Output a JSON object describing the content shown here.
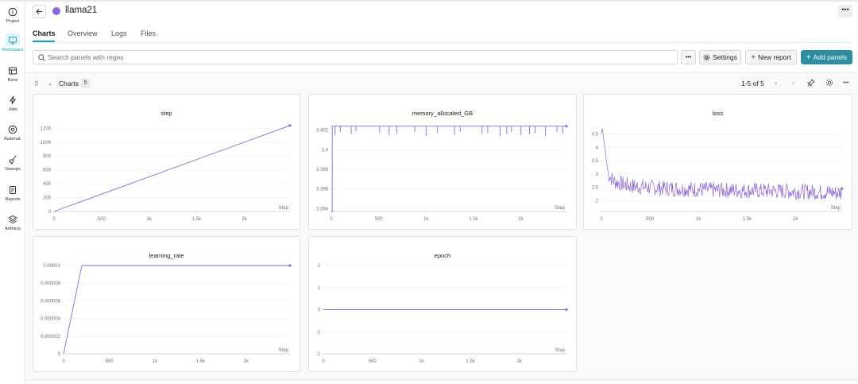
{
  "sidebar": {
    "items": [
      {
        "label": "Project",
        "icon": "info-icon"
      },
      {
        "label": "Workspace",
        "icon": "workspace-icon",
        "active": true
      },
      {
        "label": "Runs",
        "icon": "table-icon"
      },
      {
        "label": "Jobs",
        "icon": "lightning-icon"
      },
      {
        "label": "Automat.",
        "icon": "automation-icon"
      },
      {
        "label": "Sweeps",
        "icon": "broom-icon"
      },
      {
        "label": "Reports",
        "icon": "report-icon"
      },
      {
        "label": "Artifacts",
        "icon": "stack-icon"
      }
    ]
  },
  "header": {
    "run_name": "llama21",
    "run_color": "#8d68d9",
    "more": "•••"
  },
  "tabs": [
    "Charts",
    "Overview",
    "Logs",
    "Files"
  ],
  "toolbar": {
    "search_placeholder": "Search panels with regex",
    "more": "•••",
    "settings": "Settings",
    "new_report": "New report",
    "add_panels": "Add panels"
  },
  "section": {
    "title": "Charts",
    "count": "5",
    "pager": "1-5 of 5"
  },
  "colors": {
    "accent": "#13a3b5",
    "primary_button": "#2e8da3",
    "series": "#8d68d9"
  },
  "step_label": "Step",
  "chart_data": [
    {
      "type": "line",
      "title": "step",
      "xlabel": "Step",
      "xlim": [
        0,
        2480
      ],
      "ylim": [
        0,
        1250
      ],
      "xticks": [
        "0",
        "500",
        "1k",
        "1.5k",
        "2k"
      ],
      "yticks": [
        "0",
        "200",
        "400",
        "600",
        "800",
        "1000",
        "1200"
      ],
      "x": [
        0,
        2480
      ],
      "y": [
        0,
        1240
      ]
    },
    {
      "type": "line",
      "title": "memory_allocated_GB",
      "xlabel": "Step",
      "xlim": [
        0,
        2480
      ],
      "ylim": [
        3.3937,
        3.4027
      ],
      "xticks": [
        "0",
        "500",
        "1k",
        "1.5k",
        "2k"
      ],
      "yticks": [
        "3.394",
        "3.396",
        "3.398",
        "3.4",
        "3.402"
      ],
      "x": [
        0,
        10,
        10,
        2480
      ],
      "y": [
        3.3937,
        3.3937,
        3.4024,
        3.4024
      ],
      "dips_x": [
        40,
        95,
        210,
        260,
        510,
        610,
        690,
        880,
        1000,
        1120,
        1300,
        1360,
        1590,
        1650,
        1780,
        1850,
        1900,
        2000,
        2090,
        2150,
        2260,
        2380,
        2440
      ],
      "dips_y": [
        3.4015,
        3.4018,
        3.4016,
        3.4019,
        3.4017,
        3.4015,
        3.4016,
        3.4018,
        3.4014,
        3.4017,
        3.4015,
        3.4018,
        3.4016,
        3.4017,
        3.4014,
        3.4016,
        3.4018,
        3.4015,
        3.4016,
        3.4017,
        3.4014,
        3.4018,
        3.4016
      ]
    },
    {
      "type": "line",
      "title": "loss",
      "xlabel": "Step",
      "xlim": [
        0,
        2480
      ],
      "ylim": [
        1.6,
        4.9
      ],
      "xticks": [
        "0",
        "500",
        "1k",
        "1.5k",
        "2k"
      ],
      "yticks": [
        "2",
        "2.5",
        "3",
        "3.5",
        "4",
        "4.5"
      ],
      "x": [
        0,
        10,
        20,
        30,
        40,
        50,
        60,
        70,
        80,
        100,
        120,
        150,
        200,
        300,
        500,
        800,
        1200,
        1600,
        2000,
        2480
      ],
      "y": [
        4.5,
        4.75,
        4.4,
        4.1,
        3.9,
        3.5,
        3.25,
        3.05,
        2.95,
        2.85,
        2.75,
        2.7,
        2.65,
        2.55,
        2.5,
        2.45,
        2.4,
        2.38,
        2.35,
        2.3
      ],
      "noise_amplitude": 0.3
    },
    {
      "type": "line",
      "title": "learning_rate",
      "xlabel": "Step",
      "xlim": [
        0,
        2480
      ],
      "ylim": [
        0,
        1e-05
      ],
      "xticks": [
        "0",
        "500",
        "1k",
        "1.5k",
        "2k"
      ],
      "yticks": [
        "0",
        "0.000002",
        "0.000004",
        "0.000006",
        "0.000008",
        "0.00001"
      ],
      "x": [
        0,
        200,
        2480
      ],
      "y": [
        0,
        1e-05,
        1e-05
      ]
    },
    {
      "type": "line",
      "title": "epoch",
      "xlabel": "Step",
      "xlim": [
        0,
        2480
      ],
      "ylim": [
        -2,
        2
      ],
      "xticks": [
        "0",
        "500",
        "1k",
        "1.5k",
        "2k"
      ],
      "yticks": [
        "-2",
        "-1",
        "0",
        "1",
        "2"
      ],
      "x": [
        0,
        2480
      ],
      "y": [
        0,
        0
      ]
    }
  ]
}
